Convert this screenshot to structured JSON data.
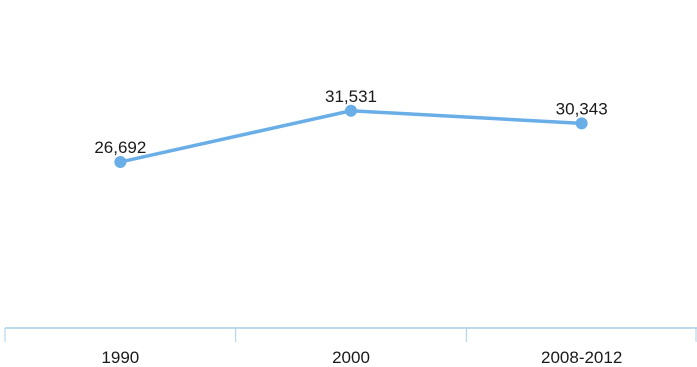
{
  "chart_data": {
    "type": "line",
    "categories": [
      "1990",
      "2000",
      "2008-2012"
    ],
    "series": [
      {
        "values": [
          26692,
          31531,
          30343
        ],
        "labels": [
          "26,692",
          "31,531",
          "30,343"
        ],
        "color": "#6aaee8"
      }
    ],
    "title": "",
    "xlabel": "",
    "ylabel": "",
    "ylim": [
      11000,
      42000
    ],
    "grid": false,
    "axis_color": "#a9cfe6"
  }
}
